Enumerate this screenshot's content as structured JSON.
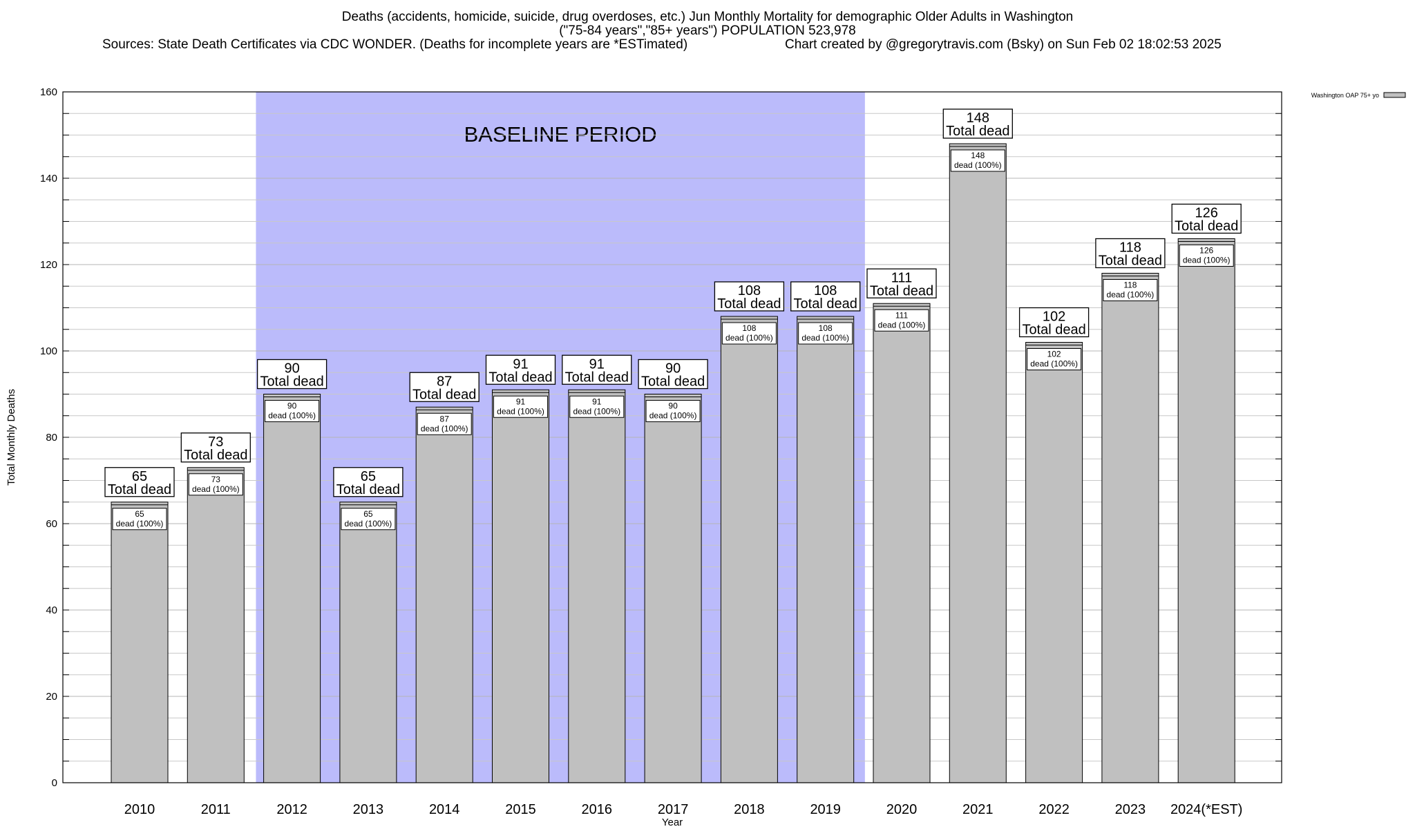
{
  "header": {
    "title_line1": "Deaths (accidents, homicide, suicide, drug overdoses, etc.) Jun Monthly Mortality for demographic Older Adults in Washington",
    "title_line2": "(\"75-84 years\",\"85+ years\") POPULATION 523,978",
    "sources": "Sources: State Death Certificates via CDC WONDER. (Deaths for incomplete years are *ESTimated)",
    "credit": "Chart created by @gregorytravis.com (Bsky) on Sun Feb 02 18:02:53 2025"
  },
  "chart_data": {
    "type": "bar",
    "xlabel": "Year",
    "ylabel": "Total Monthly Deaths",
    "ylim": [
      0,
      160
    ],
    "yticks": [
      0,
      20,
      40,
      60,
      80,
      100,
      120,
      140,
      160
    ],
    "grid": true,
    "legend_position": "top-right",
    "categories": [
      "2010",
      "2011",
      "2012",
      "2013",
      "2014",
      "2015",
      "2016",
      "2017",
      "2018",
      "2019",
      "2020",
      "2021",
      "2022",
      "2023",
      "2024(*EST)"
    ],
    "series": [
      {
        "name": "Washington OAP 75+ yo",
        "values": [
          65,
          73,
          90,
          65,
          87,
          91,
          91,
          90,
          108,
          108,
          111,
          148,
          102,
          118,
          126
        ]
      }
    ],
    "top_label_suffix": "Total dead",
    "inner_label_suffix": "dead (100%)",
    "baseline_period": {
      "label": "BASELINE PERIOD",
      "start": "2012",
      "end": "2019"
    },
    "colors": {
      "bar": "#c0c0c0",
      "baseline": "#bbbbfb",
      "grid": "#c8c8c8"
    }
  }
}
